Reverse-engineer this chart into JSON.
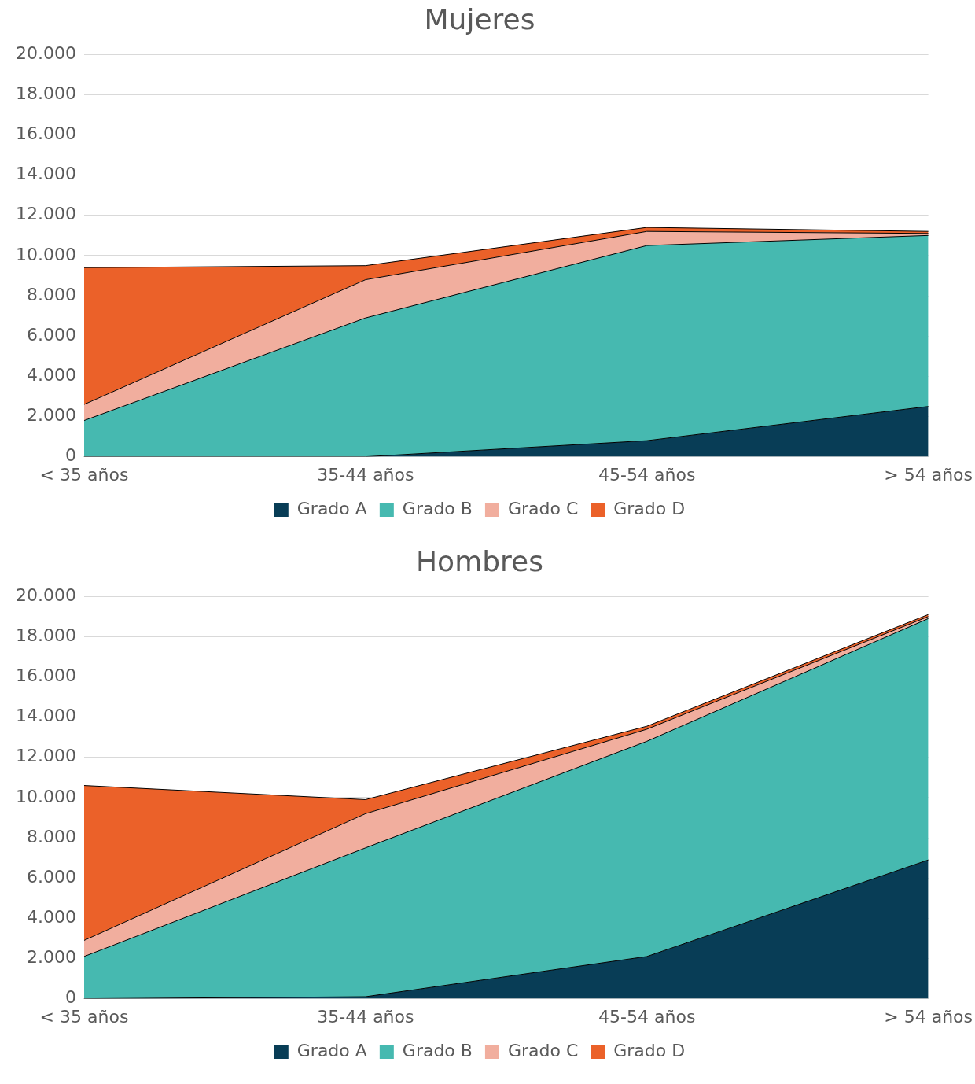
{
  "chart_data": [
    {
      "type": "area",
      "title": "Mujeres",
      "categories": [
        "< 35 años",
        "35-44 años",
        "45-54 años",
        "> 54 años"
      ],
      "stacked": true,
      "ylim": [
        0,
        20000
      ],
      "yticks": [
        {
          "value": 0,
          "label": "0"
        },
        {
          "value": 2000,
          "label": "2.000"
        },
        {
          "value": 4000,
          "label": "4.000"
        },
        {
          "value": 6000,
          "label": "6.000"
        },
        {
          "value": 8000,
          "label": "8.000"
        },
        {
          "value": 10000,
          "label": "10.000"
        },
        {
          "value": 12000,
          "label": "12.000"
        },
        {
          "value": 14000,
          "label": "14.000"
        },
        {
          "value": 16000,
          "label": "16.000"
        },
        {
          "value": 18000,
          "label": "18.000"
        },
        {
          "value": 20000,
          "label": "20.000"
        }
      ],
      "grid": "y",
      "legend": "bottom",
      "series": [
        {
          "name": "Grado A",
          "color": "#083d56",
          "values": [
            0,
            0,
            800,
            2500
          ]
        },
        {
          "name": "Grado B",
          "color": "#46b9b0",
          "values": [
            1800,
            6900,
            9700,
            8500
          ]
        },
        {
          "name": "Grado C",
          "color": "#f1ae9e",
          "values": [
            800,
            1900,
            700,
            100
          ]
        },
        {
          "name": "Grado D",
          "color": "#eb6129",
          "values": [
            6800,
            700,
            200,
            100
          ]
        }
      ]
    },
    {
      "type": "area",
      "title": "Hombres",
      "categories": [
        "< 35 años",
        "35-44 años",
        "45-54 años",
        "> 54 años"
      ],
      "stacked": true,
      "ylim": [
        0,
        20000
      ],
      "yticks": [
        {
          "value": 0,
          "label": "0"
        },
        {
          "value": 2000,
          "label": "2.000"
        },
        {
          "value": 4000,
          "label": "4.000"
        },
        {
          "value": 6000,
          "label": "6.000"
        },
        {
          "value": 8000,
          "label": "8.000"
        },
        {
          "value": 10000,
          "label": "10.000"
        },
        {
          "value": 12000,
          "label": "12.000"
        },
        {
          "value": 14000,
          "label": "14.000"
        },
        {
          "value": 16000,
          "label": "16.000"
        },
        {
          "value": 18000,
          "label": "18.000"
        },
        {
          "value": 20000,
          "label": "20.000"
        }
      ],
      "grid": "y",
      "legend": "bottom",
      "series": [
        {
          "name": "Grado A",
          "color": "#083d56",
          "values": [
            0,
            100,
            2100,
            6900
          ]
        },
        {
          "name": "Grado B",
          "color": "#46b9b0",
          "values": [
            2100,
            7400,
            10700,
            12000
          ]
        },
        {
          "name": "Grado C",
          "color": "#f1ae9e",
          "values": [
            800,
            1700,
            600,
            100
          ]
        },
        {
          "name": "Grado D",
          "color": "#eb6129",
          "values": [
            7700,
            700,
            150,
            100
          ]
        }
      ]
    }
  ]
}
